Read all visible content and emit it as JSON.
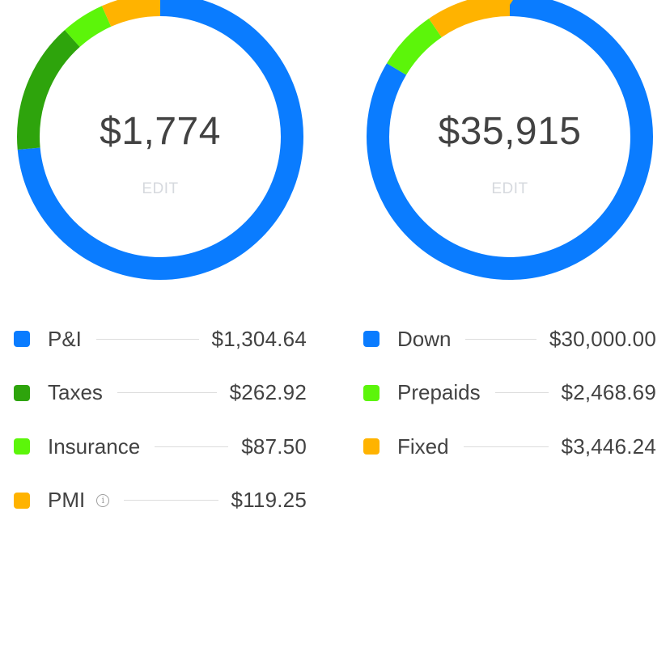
{
  "charts": [
    {
      "total": "$1,774",
      "edit_label": "EDIT",
      "items": [
        {
          "label": "P&I",
          "value": "$1,304.64",
          "amount": 1304.64,
          "color": "#0a7cff",
          "info": false
        },
        {
          "label": "Taxes",
          "value": "$262.92",
          "amount": 262.92,
          "color": "#2ea40c",
          "info": false
        },
        {
          "label": "Insurance",
          "value": "$87.50",
          "amount": 87.5,
          "color": "#5cf50a",
          "info": false
        },
        {
          "label": "PMI",
          "value": "$119.25",
          "amount": 119.25,
          "color": "#ffb300",
          "info": true,
          "info_icon": "info-icon"
        }
      ]
    },
    {
      "total": "$35,915",
      "edit_label": "EDIT",
      "items": [
        {
          "label": "Down",
          "value": "$30,000.00",
          "amount": 30000.0,
          "color": "#0a7cff",
          "info": false
        },
        {
          "label": "Prepaids",
          "value": "$2,468.69",
          "amount": 2468.69,
          "color": "#5cf50a",
          "info": false
        },
        {
          "label": "Fixed",
          "value": "$3,446.24",
          "amount": 3446.24,
          "color": "#ffb300",
          "info": false
        }
      ]
    }
  ]
}
